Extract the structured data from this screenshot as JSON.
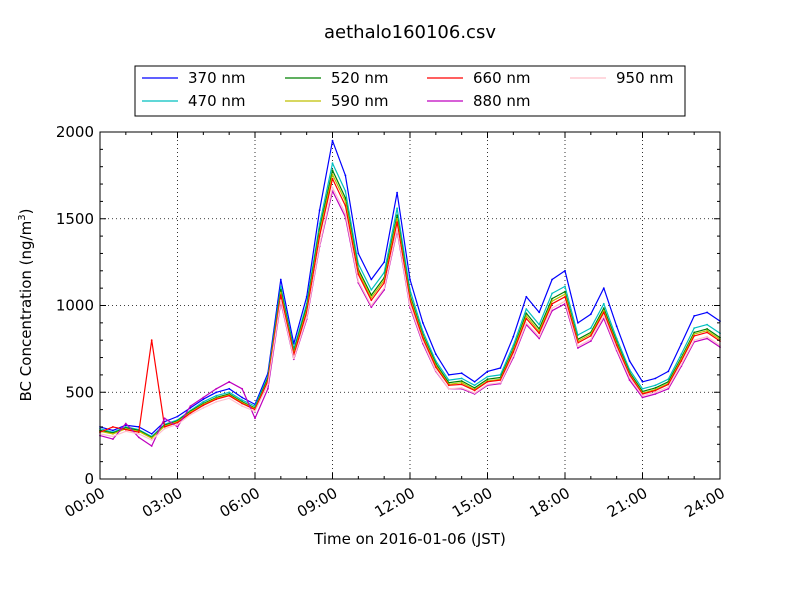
{
  "chart_data": {
    "type": "line",
    "title": "aethalo160106.csv",
    "xlabel": "Time on 2016-01-06 (JST)",
    "ylabel_main": "BC Concentration (ng/m",
    "ylabel_sup": "3",
    "ylabel_close": ")",
    "xlim": [
      0,
      24
    ],
    "ylim": [
      0,
      2000
    ],
    "grid": true,
    "legend_position": "top-center",
    "legend_columns": 4,
    "x_ticks": [
      {
        "value": 0,
        "label": "00:00"
      },
      {
        "value": 3,
        "label": "03:00"
      },
      {
        "value": 6,
        "label": "06:00"
      },
      {
        "value": 9,
        "label": "09:00"
      },
      {
        "value": 12,
        "label": "12:00"
      },
      {
        "value": 15,
        "label": "15:00"
      },
      {
        "value": 18,
        "label": "18:00"
      },
      {
        "value": 21,
        "label": "21:00"
      },
      {
        "value": 24,
        "label": "24:00"
      }
    ],
    "y_ticks": [
      {
        "value": 0,
        "label": "0"
      },
      {
        "value": 500,
        "label": "500"
      },
      {
        "value": 1000,
        "label": "1000"
      },
      {
        "value": 1500,
        "label": "1500"
      },
      {
        "value": 2000,
        "label": "2000"
      }
    ],
    "x": [
      0,
      0.5,
      1,
      1.5,
      2,
      2.5,
      3,
      3.5,
      4,
      4.5,
      5,
      5.5,
      6,
      6.5,
      7,
      7.5,
      8,
      8.5,
      9,
      9.5,
      10,
      10.5,
      11,
      11.5,
      12,
      12.5,
      13,
      13.5,
      14,
      14.5,
      15,
      15.5,
      16,
      16.5,
      17,
      17.5,
      18,
      18.5,
      19,
      19.5,
      20,
      20.5,
      21,
      21.5,
      22,
      22.5,
      23,
      23.5,
      24
    ],
    "series": [
      {
        "name": "370 nm",
        "color": "#0000ff",
        "values": [
          300,
          280,
          310,
          300,
          260,
          330,
          360,
          410,
          460,
          500,
          520,
          470,
          430,
          610,
          1150,
          780,
          1050,
          1550,
          1950,
          1750,
          1300,
          1150,
          1250,
          1650,
          1150,
          900,
          720,
          600,
          610,
          560,
          620,
          640,
          820,
          1050,
          960,
          1150,
          1200,
          900,
          950,
          1100,
          880,
          680,
          560,
          580,
          620,
          780,
          940,
          960,
          910
        ]
      },
      {
        "name": "470 nm",
        "color": "#00bfbf",
        "values": [
          290,
          270,
          300,
          285,
          245,
          315,
          340,
          395,
          445,
          480,
          500,
          455,
          420,
          590,
          1110,
          750,
          1010,
          1470,
          1820,
          1660,
          1240,
          1090,
          1190,
          1560,
          1090,
          850,
          680,
          570,
          580,
          540,
          590,
          600,
          770,
          980,
          890,
          1070,
          1110,
          830,
          870,
          1010,
          810,
          630,
          520,
          540,
          575,
          720,
          870,
          890,
          840
        ]
      },
      {
        "name": "520 nm",
        "color": "#008000",
        "values": [
          280,
          265,
          295,
          280,
          240,
          310,
          335,
          390,
          435,
          470,
          490,
          445,
          410,
          580,
          1090,
          735,
          990,
          1440,
          1780,
          1620,
          1210,
          1060,
          1160,
          1520,
          1060,
          830,
          665,
          555,
          565,
          525,
          575,
          585,
          750,
          955,
          865,
          1040,
          1080,
          805,
          845,
          985,
          790,
          615,
          505,
          525,
          560,
          700,
          845,
          865,
          815
        ]
      },
      {
        "name": "590 nm",
        "color": "#bfbf00",
        "values": [
          275,
          260,
          290,
          275,
          235,
          305,
          330,
          385,
          430,
          465,
          485,
          440,
          405,
          570,
          1075,
          725,
          975,
          1420,
          1755,
          1600,
          1195,
          1045,
          1145,
          1500,
          1045,
          820,
          655,
          545,
          555,
          515,
          565,
          575,
          740,
          940,
          850,
          1025,
          1065,
          795,
          835,
          970,
          780,
          605,
          495,
          515,
          550,
          690,
          835,
          855,
          805
        ]
      },
      {
        "name": "660 nm",
        "color": "#ff0000",
        "values": [
          270,
          300,
          285,
          270,
          800,
          300,
          325,
          380,
          425,
          460,
          480,
          435,
          400,
          565,
          1060,
          715,
          960,
          1400,
          1730,
          1575,
          1180,
          1030,
          1130,
          1480,
          1030,
          810,
          645,
          540,
          545,
          510,
          560,
          570,
          730,
          925,
          840,
          1010,
          1050,
          785,
          825,
          960,
          770,
          600,
          490,
          510,
          545,
          680,
          825,
          845,
          795
        ]
      },
      {
        "name": "880 nm",
        "color": "#bf00bf",
        "values": [
          250,
          230,
          320,
          240,
          190,
          350,
          300,
          420,
          470,
          520,
          560,
          520,
          350,
          520,
          1020,
          690,
          920,
          1340,
          1660,
          1510,
          1130,
          990,
          1090,
          1430,
          990,
          780,
          620,
          520,
          520,
          490,
          540,
          550,
          700,
          890,
          810,
          970,
          1010,
          755,
          795,
          925,
          740,
          570,
          470,
          490,
          520,
          650,
          790,
          810,
          760
        ]
      },
      {
        "name": "950 nm",
        "color": "#ffc0cb",
        "values": [
          260,
          245,
          275,
          260,
          225,
          290,
          315,
          370,
          410,
          445,
          465,
          420,
          390,
          545,
          1030,
          695,
          930,
          1350,
          1680,
          1530,
          1140,
          1000,
          1100,
          1440,
          1000,
          790,
          625,
          520,
          525,
          495,
          545,
          555,
          710,
          900,
          820,
          985,
          1025,
          765,
          805,
          940,
          750,
          585,
          480,
          500,
          530,
          660,
          800,
          820,
          770
        ]
      }
    ]
  }
}
